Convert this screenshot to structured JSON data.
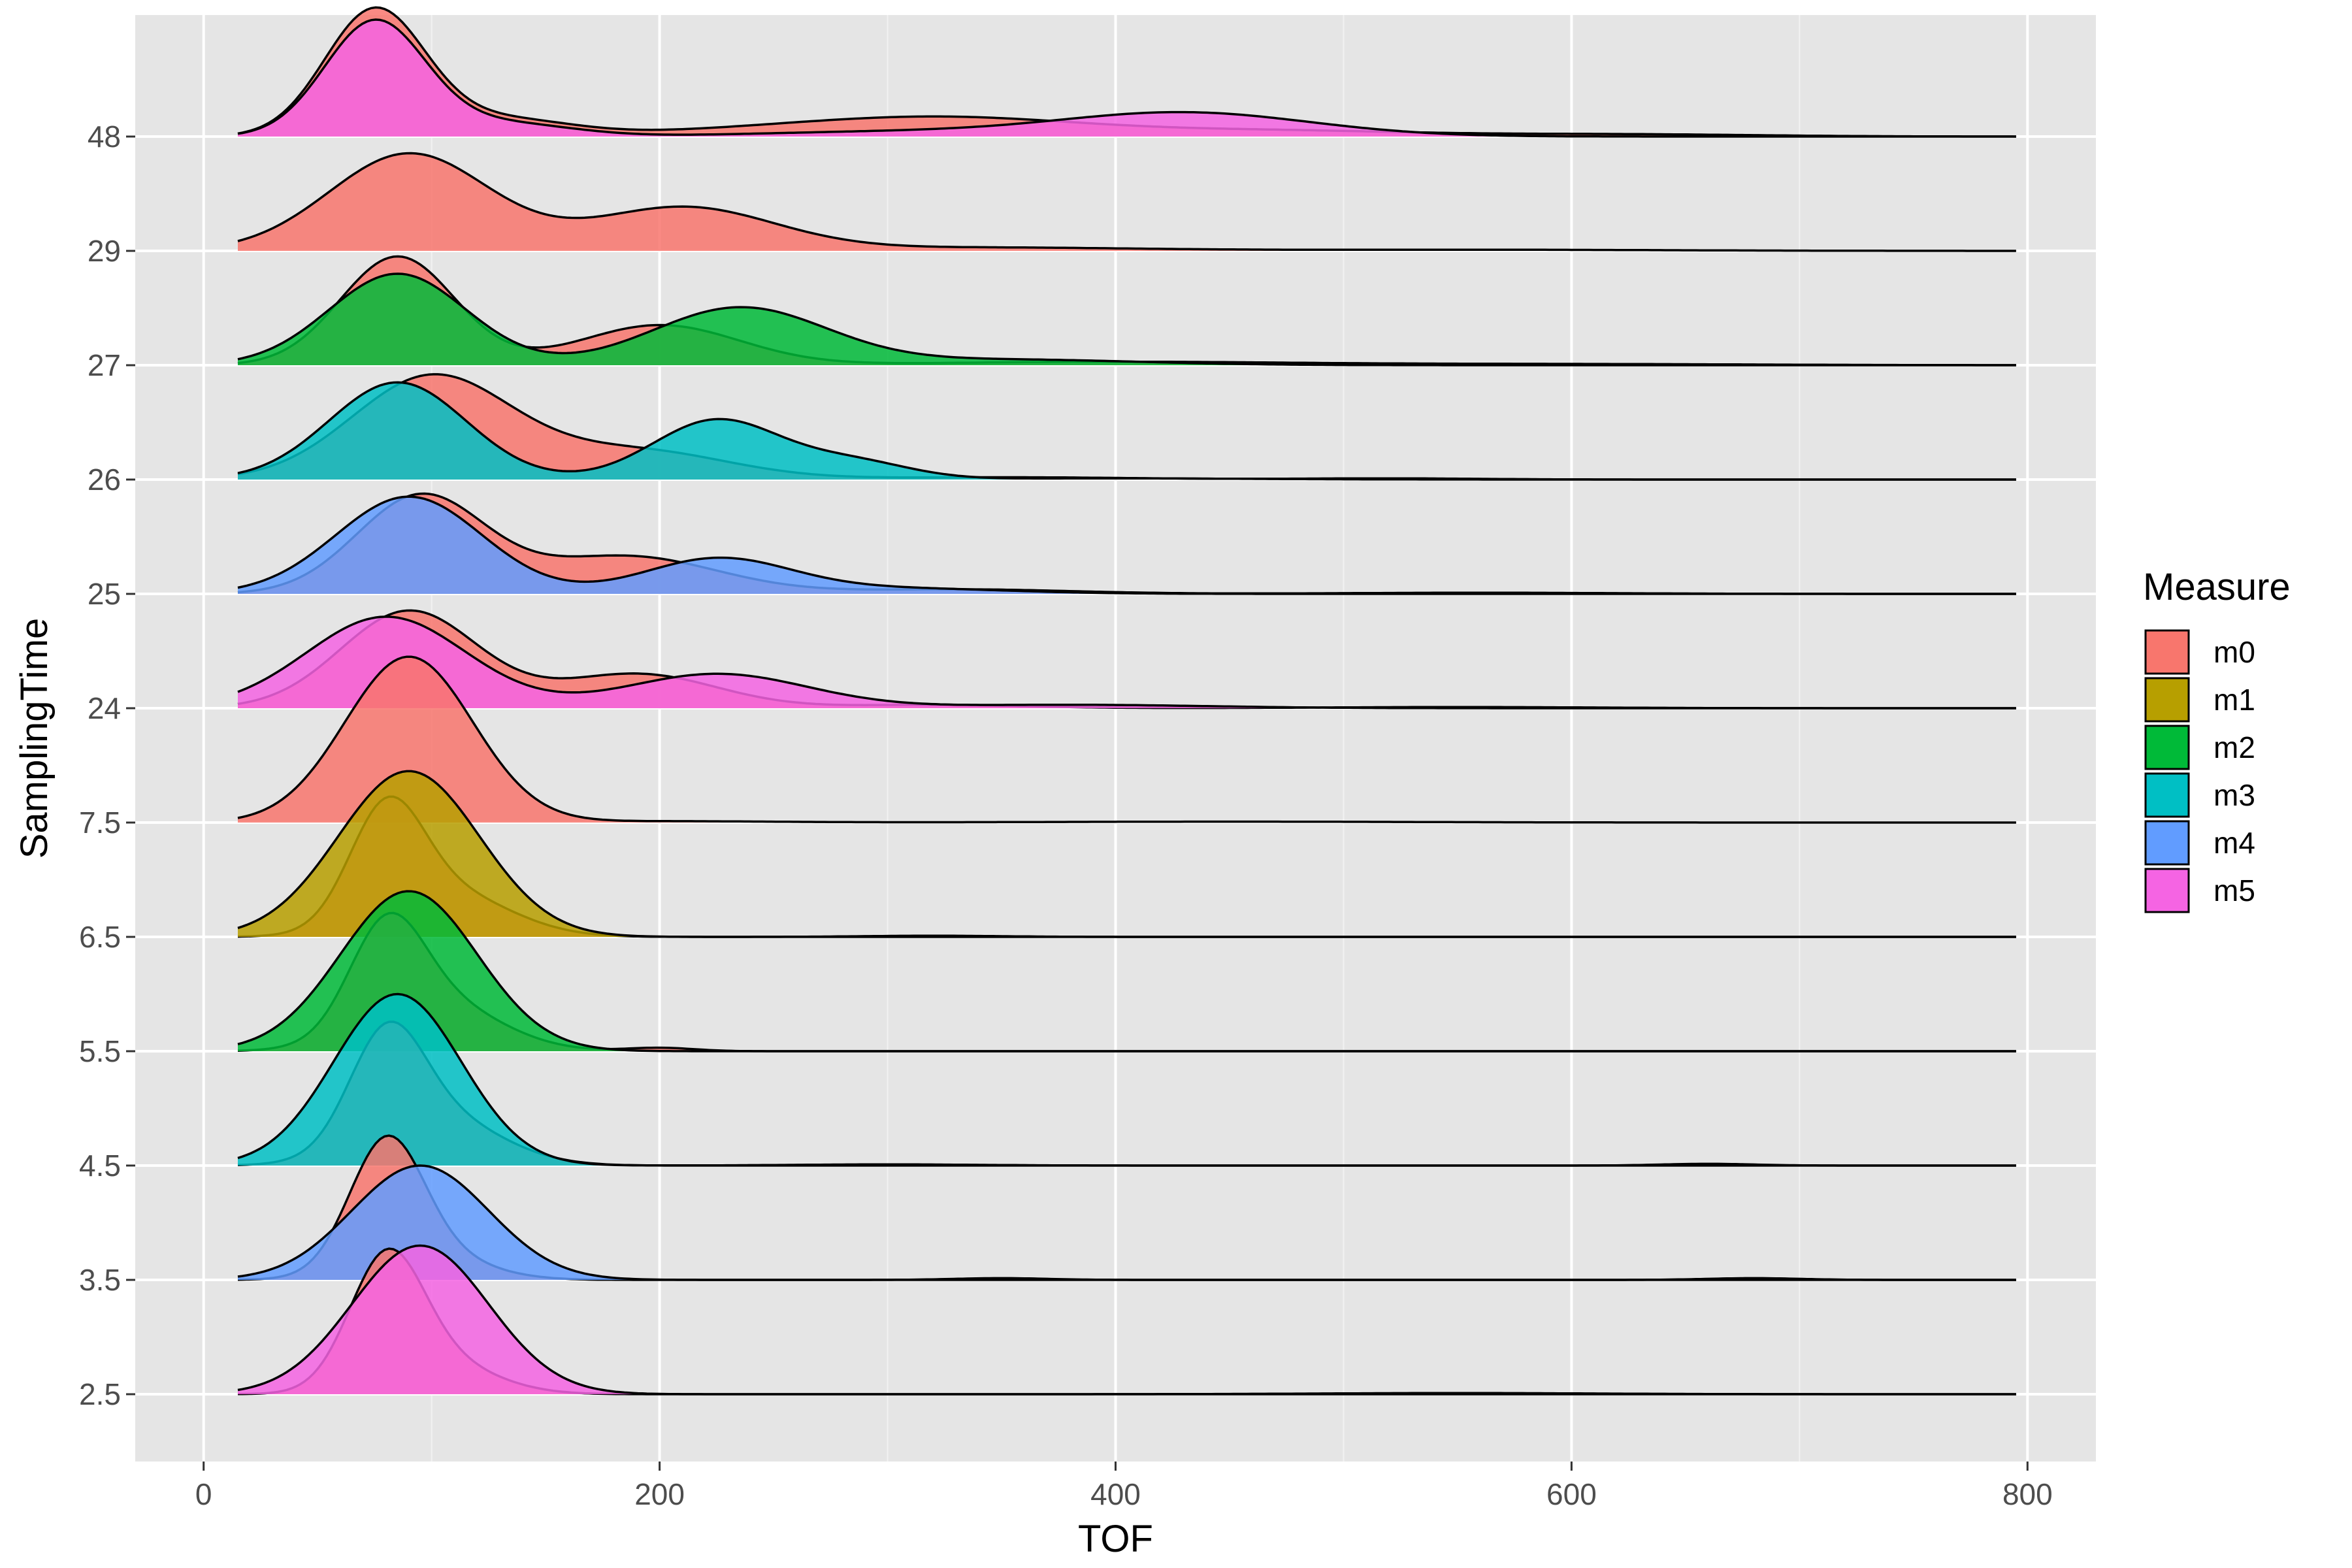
{
  "chart_data": {
    "type": "ridgeline",
    "xlabel": "TOF",
    "ylabel": "SamplingTime",
    "xlim": [
      -30,
      830
    ],
    "x_ticks": [
      0,
      200,
      400,
      600,
      800
    ],
    "categories": [
      "2.5",
      "3.5",
      "4.5",
      "5.5",
      "6.5",
      "7.5",
      "24",
      "25",
      "26",
      "27",
      "29",
      "48"
    ],
    "x_range": [
      15,
      795
    ],
    "legend": {
      "title": "Measure",
      "position": "right",
      "entries": [
        {
          "name": "m0",
          "color": "#F8766D"
        },
        {
          "name": "m1",
          "color": "#B79F00"
        },
        {
          "name": "m2",
          "color": "#00BA38"
        },
        {
          "name": "m3",
          "color": "#00BFC4"
        },
        {
          "name": "m4",
          "color": "#619CFF"
        },
        {
          "name": "m5",
          "color": "#F564E3"
        }
      ]
    },
    "ridges": [
      {
        "time": "2.5",
        "series": [
          {
            "measure": "m0",
            "peaks": [
              [
                80,
                1.05,
                16
              ],
              [
                100,
                0.3,
                25
              ]
            ],
            "tail": [
              [
                550,
                0.01,
                60
              ]
            ]
          },
          {
            "measure": "m5",
            "peaks": [
              [
                95,
                1.3,
                30
              ]
            ]
          }
        ]
      },
      {
        "time": "3.5",
        "series": [
          {
            "measure": "m0",
            "peaks": [
              [
                80,
                1.05,
                16
              ],
              [
                95,
                0.25,
                25
              ]
            ],
            "tail": [
              [
                350,
                0.015,
                20
              ],
              [
                680,
                0.015,
                20
              ]
            ]
          },
          {
            "measure": "m4",
            "peaks": [
              [
                95,
                1.0,
                30
              ]
            ]
          }
        ]
      },
      {
        "time": "4.5",
        "series": [
          {
            "measure": "m0",
            "peaks": [
              [
                80,
                0.9,
                16
              ],
              [
                100,
                0.45,
                28
              ]
            ],
            "tail": [
              [
                300,
                0.01,
                40
              ],
              [
                660,
                0.015,
                20
              ]
            ]
          },
          {
            "measure": "m3",
            "peaks": [
              [
                85,
                1.5,
                28
              ]
            ]
          }
        ]
      },
      {
        "time": "5.5",
        "series": [
          {
            "measure": "m0",
            "peaks": [
              [
                80,
                0.85,
                16
              ],
              [
                100,
                0.45,
                28
              ]
            ],
            "tail": [
              [
                200,
                0.03,
                15
              ]
            ]
          },
          {
            "measure": "m2",
            "peaks": [
              [
                90,
                1.4,
                30
              ]
            ]
          }
        ]
      },
      {
        "time": "6.5",
        "series": [
          {
            "measure": "m0",
            "peaks": [
              [
                80,
                0.95,
                16
              ],
              [
                105,
                0.4,
                28
              ]
            ],
            "tail": [
              [
                320,
                0.01,
                30
              ]
            ]
          },
          {
            "measure": "m1",
            "peaks": [
              [
                90,
                1.45,
                31
              ]
            ]
          }
        ]
      },
      {
        "time": "7.5",
        "series": [
          {
            "measure": "m0",
            "peaks": [
              [
                90,
                1.45,
                28
              ]
            ],
            "tail": [
              [
                200,
                0.012,
                50
              ],
              [
                450,
                0.008,
                80
              ]
            ]
          }
        ]
      },
      {
        "time": "24",
        "series": [
          {
            "measure": "m0",
            "peaks": [
              [
                90,
                0.85,
                30
              ],
              [
                190,
                0.3,
                35
              ]
            ],
            "tail": [
              [
                320,
                0.03,
                40
              ],
              [
                550,
                0.01,
                60
              ]
            ]
          },
          {
            "measure": "m5",
            "peaks": [
              [
                80,
                0.8,
                35
              ],
              [
                225,
                0.3,
                40
              ]
            ],
            "tail": [
              [
                380,
                0.03,
                60
              ]
            ]
          }
        ]
      },
      {
        "time": "25",
        "series": [
          {
            "measure": "m0",
            "peaks": [
              [
                95,
                0.85,
                28
              ],
              [
                185,
                0.33,
                40
              ]
            ],
            "tail": [
              [
                330,
                0.04,
                50
              ],
              [
                560,
                0.01,
                60
              ]
            ]
          },
          {
            "measure": "m4",
            "peaks": [
              [
                90,
                0.85,
                32
              ],
              [
                225,
                0.3,
                32
              ]
            ],
            "tail": [
              [
                300,
                0.05,
                50
              ]
            ]
          }
        ]
      },
      {
        "time": "26",
        "series": [
          {
            "measure": "m0",
            "peaks": [
              [
                100,
                0.9,
                35
              ],
              [
                190,
                0.25,
                40
              ]
            ],
            "tail": [
              [
                350,
                0.02,
                60
              ],
              [
                520,
                0.01,
                40
              ]
            ]
          },
          {
            "measure": "m3",
            "peaks": [
              [
                85,
                0.85,
                30
              ],
              [
                225,
                0.52,
                28
              ],
              [
                285,
                0.15,
                25
              ]
            ],
            "tail": [
              [
                400,
                0.01,
                60
              ]
            ]
          }
        ]
      },
      {
        "time": "27",
        "series": [
          {
            "measure": "m0",
            "peaks": [
              [
                85,
                0.95,
                25
              ],
              [
                200,
                0.35,
                35
              ]
            ],
            "tail": [
              [
                400,
                0.03,
                80
              ],
              [
                600,
                0.01,
                80
              ]
            ]
          },
          {
            "measure": "m2",
            "peaks": [
              [
                85,
                0.8,
                30
              ],
              [
                235,
                0.5,
                38
              ]
            ],
            "tail": [
              [
                350,
                0.05,
                60
              ]
            ]
          }
        ]
      },
      {
        "time": "29",
        "series": [
          {
            "measure": "m0",
            "peaks": [
              [
                90,
                0.85,
                35
              ],
              [
                210,
                0.38,
                40
              ]
            ],
            "tail": [
              [
                340,
                0.03,
                70
              ],
              [
                560,
                0.01,
                80
              ]
            ]
          }
        ]
      },
      {
        "time": "48",
        "series": [
          {
            "measure": "m0",
            "peaks": [
              [
                75,
                1.1,
                22
              ],
              [
                130,
                0.15,
                30
              ]
            ],
            "tail": [
              [
                330,
                0.15,
                60
              ],
              [
                250,
                0.05,
                60
              ],
              [
                470,
                0.05,
                60
              ],
              [
                620,
                0.02,
                60
              ]
            ]
          },
          {
            "measure": "m5",
            "peaks": [
              [
                75,
                1.0,
                22
              ],
              [
                130,
                0.12,
                30
              ],
              [
                430,
                0.21,
                55
              ]
            ],
            "tail": [
              [
                300,
                0.04,
                60
              ]
            ]
          }
        ]
      }
    ]
  }
}
